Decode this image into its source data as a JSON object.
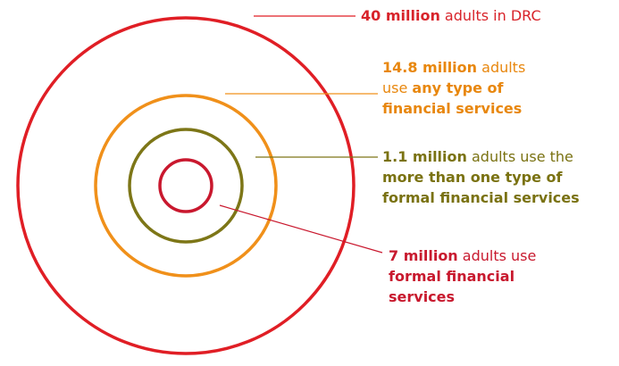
{
  "colors": {
    "outer": "#e01e25",
    "orange": "#f0901a",
    "olive": "#7d7617",
    "inner": "#c9182e"
  },
  "labels": {
    "red": {
      "bold": "40 million",
      "text": " adults in DRC"
    },
    "orange": {
      "l1_bold": "14.8 million",
      "l1_text": " adults",
      "l2_text": "use ",
      "l2_bold": "any type of",
      "l3_bold": "financial services"
    },
    "olive": {
      "l1_bold": "1.1 million",
      "l1_text": " adults use the",
      "l2_bold": "more than one type of",
      "l3_bold": "formal financial services"
    },
    "crimson": {
      "l1_bold": "7 million",
      "l1_text": " adults use",
      "l2_bold": "formal financial",
      "l3_bold": "services"
    }
  }
}
